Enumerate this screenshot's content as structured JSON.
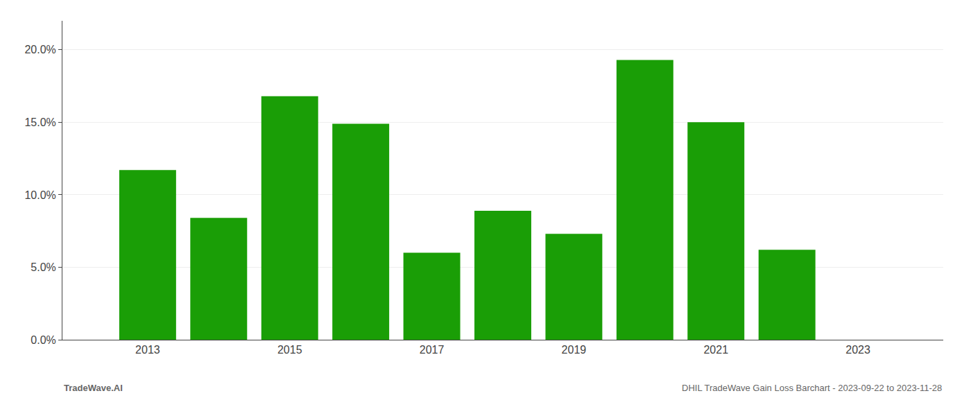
{
  "chart_data": {
    "type": "bar",
    "x": [
      2013,
      2014,
      2015,
      2016,
      2017,
      2018,
      2019,
      2020,
      2021,
      2022
    ],
    "values": [
      0.117,
      0.084,
      0.168,
      0.149,
      0.06,
      0.089,
      0.073,
      0.193,
      0.15,
      0.062
    ],
    "color": "#1a9e06",
    "xlim": [
      2011.8,
      2024.2
    ],
    "xticks": [
      2013,
      2015,
      2017,
      2019,
      2021,
      2023
    ],
    "ylim": [
      0.0,
      0.22
    ],
    "yticks": [
      {
        "value": 0.0,
        "label": "0.0%"
      },
      {
        "value": 0.05,
        "label": "5.0%"
      },
      {
        "value": 0.1,
        "label": "10.0%"
      },
      {
        "value": 0.15,
        "label": "15.0%"
      },
      {
        "value": 0.2,
        "label": "20.0%"
      }
    ],
    "grid": "y",
    "annotations": [
      "TradeWave.AI",
      "DHIL TradeWave Gain Loss Barchart - 2023-09-22 to 2023-11-28"
    ]
  }
}
